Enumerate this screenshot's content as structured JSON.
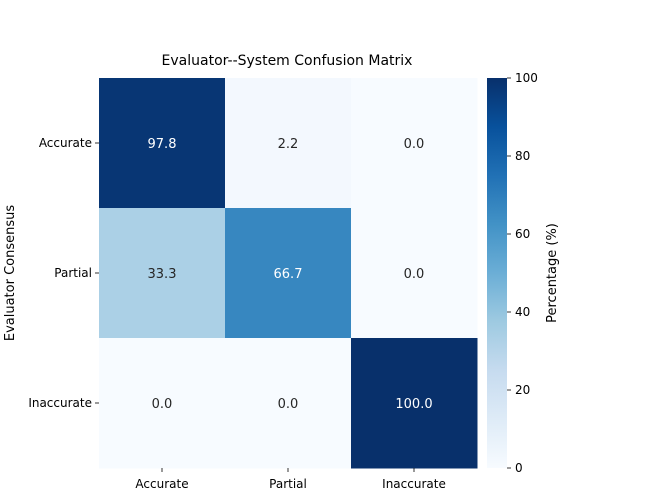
{
  "chart_data": {
    "type": "heatmap",
    "title": "Evaluator--System Confusion Matrix",
    "ylabel": "Evaluator Consensus",
    "xlabel": "",
    "x_categories": [
      "Accurate",
      "Partial",
      "Inaccurate"
    ],
    "y_categories": [
      "Accurate",
      "Partial",
      "Inaccurate"
    ],
    "values": [
      [
        97.8,
        2.2,
        0.0
      ],
      [
        33.3,
        66.7,
        0.0
      ],
      [
        0.0,
        0.0,
        100.0
      ]
    ],
    "value_labels": [
      [
        "97.8",
        "2.2",
        "0.0"
      ],
      [
        "33.3",
        "66.7",
        "0.0"
      ],
      [
        "0.0",
        "0.0",
        "100.0"
      ]
    ],
    "colorbar": {
      "label": "Percentage (%)",
      "range": [
        0,
        100
      ],
      "ticks": [
        "0",
        "20",
        "40",
        "60",
        "80",
        "100"
      ]
    },
    "colormap": "Blues",
    "colors": {
      "low": "#f7fbff",
      "high": "#08306b",
      "text_dark": "#262626",
      "text_light": "#ffffff"
    },
    "grid": false
  }
}
